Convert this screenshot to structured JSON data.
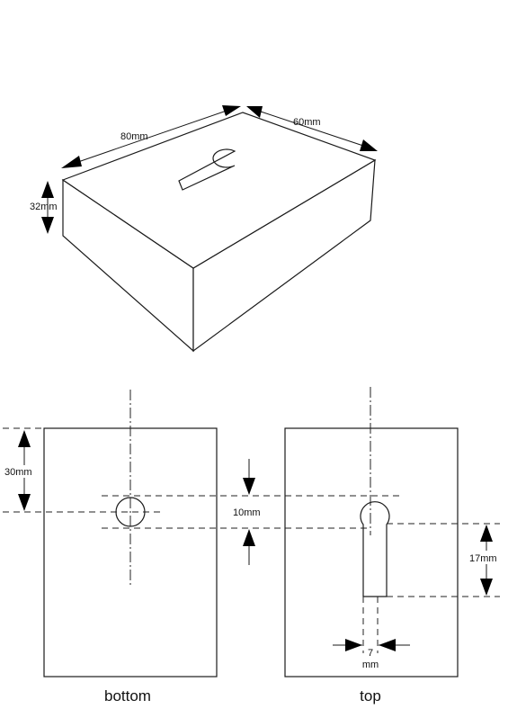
{
  "isometric": {
    "length": "80mm",
    "width": "60mm",
    "height": "32mm"
  },
  "bottom_view": {
    "caption": "bottom",
    "hole_offset": "30mm",
    "hole_diameter": "10mm"
  },
  "top_view": {
    "caption": "top",
    "slot_length": "17mm",
    "slot_width_value": "7",
    "slot_width_unit": "mm"
  }
}
